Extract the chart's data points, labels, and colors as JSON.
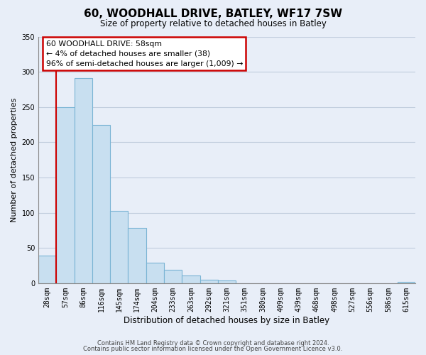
{
  "title": "60, WOODHALL DRIVE, BATLEY, WF17 7SW",
  "subtitle": "Size of property relative to detached houses in Batley",
  "xlabel": "Distribution of detached houses by size in Batley",
  "ylabel": "Number of detached properties",
  "bar_labels": [
    "28sqm",
    "57sqm",
    "86sqm",
    "116sqm",
    "145sqm",
    "174sqm",
    "204sqm",
    "233sqm",
    "263sqm",
    "292sqm",
    "321sqm",
    "351sqm",
    "380sqm",
    "409sqm",
    "439sqm",
    "468sqm",
    "498sqm",
    "527sqm",
    "556sqm",
    "586sqm",
    "615sqm"
  ],
  "bar_values": [
    39,
    250,
    291,
    225,
    103,
    78,
    29,
    19,
    11,
    5,
    4,
    0,
    0,
    0,
    0,
    0,
    0,
    0,
    0,
    0,
    2
  ],
  "bar_color": "#c8dff0",
  "bar_edge_color": "#7ab4d4",
  "vline_color": "#cc0000",
  "annotation_line1": "60 WOODHALL DRIVE: 58sqm",
  "annotation_line2": "← 4% of detached houses are smaller (38)",
  "annotation_line3": "96% of semi-detached houses are larger (1,009) →",
  "annotation_box_color": "#ffffff",
  "annotation_box_edge": "#cc0000",
  "ylim": [
    0,
    350
  ],
  "yticks": [
    0,
    50,
    100,
    150,
    200,
    250,
    300,
    350
  ],
  "footer_line1": "Contains HM Land Registry data © Crown copyright and database right 2024.",
  "footer_line2": "Contains public sector information licensed under the Open Government Licence v3.0.",
  "bg_color": "#e8eef8",
  "plot_bg_color": "#e8eef8",
  "grid_color": "#c0ccdd"
}
